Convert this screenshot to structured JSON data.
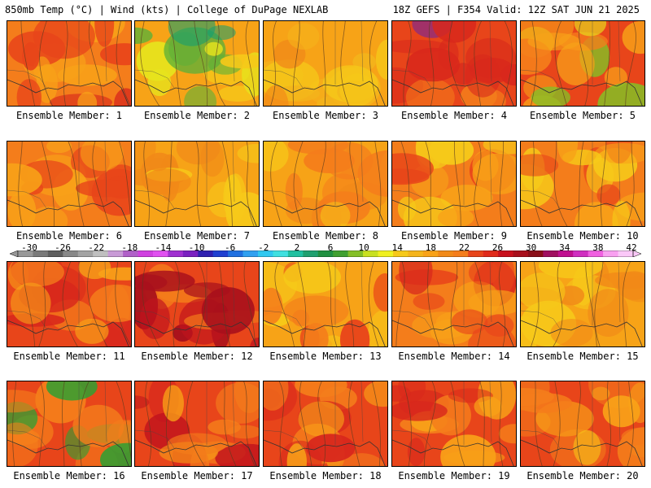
{
  "header": {
    "left": "850mb Temp (°C) | Wind (kts) | College of DuPage NEXLAB",
    "right": "18Z GEFS | F354 Valid: 12Z SAT JUN 21 2025"
  },
  "members": [
    {
      "label": "Ensemble Member: 1",
      "palette": [
        "#f47d1b",
        "#e8451a",
        "#f8a218",
        "#d8281c"
      ]
    },
    {
      "label": "Ensemble Member: 2",
      "palette": [
        "#f7a317",
        "#f6c919",
        "#e6e41d",
        "#5cb038",
        "#199e6e"
      ]
    },
    {
      "label": "Ensemble Member: 3",
      "palette": [
        "#f7a317",
        "#f6c919",
        "#f18918",
        "#f4b41b"
      ]
    },
    {
      "label": "Ensemble Member: 4",
      "palette": [
        "#e8451a",
        "#d8281c",
        "#a8101c",
        "#8b2b80",
        "#f47d1b"
      ]
    },
    {
      "label": "Ensemble Member: 5",
      "palette": [
        "#e8451a",
        "#f47d1b",
        "#f8a218",
        "#e6e41d",
        "#84bf26"
      ]
    },
    {
      "label": "Ensemble Member: 6",
      "palette": [
        "#f47d1b",
        "#e8451a",
        "#f8a218"
      ]
    },
    {
      "label": "Ensemble Member: 7",
      "palette": [
        "#f7a317",
        "#f6c919",
        "#f18918"
      ]
    },
    {
      "label": "Ensemble Member: 8",
      "palette": [
        "#f7a317",
        "#f47d1b",
        "#f6c919",
        "#f18918"
      ]
    },
    {
      "label": "Ensemble Member: 9",
      "palette": [
        "#f47d1b",
        "#e8451a",
        "#f8a218",
        "#f6c919"
      ]
    },
    {
      "label": "Ensemble Member: 10",
      "palette": [
        "#f47d1b",
        "#e8451a",
        "#f8a218",
        "#f6c919"
      ]
    },
    {
      "label": "Ensemble Member: 11",
      "palette": [
        "#e8451a",
        "#d8281c",
        "#f47d1b",
        "#f8a218"
      ]
    },
    {
      "label": "Ensemble Member: 12",
      "palette": [
        "#e8451a",
        "#c0131d",
        "#a8101c",
        "#f47d1b"
      ]
    },
    {
      "label": "Ensemble Member: 13",
      "palette": [
        "#f7a317",
        "#f47d1b",
        "#e8451a",
        "#f6c919"
      ]
    },
    {
      "label": "Ensemble Member: 14",
      "palette": [
        "#f47d1b",
        "#e8451a",
        "#d8281c",
        "#f8a218"
      ]
    },
    {
      "label": "Ensemble Member: 15",
      "palette": [
        "#f7a317",
        "#f6c919",
        "#f18918"
      ]
    },
    {
      "label": "Ensemble Member: 16",
      "palette": [
        "#e8451a",
        "#d8281c",
        "#f47d1b",
        "#f8a218",
        "#2fa033"
      ]
    },
    {
      "label": "Ensemble Member: 17",
      "palette": [
        "#e8451a",
        "#d8281c",
        "#c0131d",
        "#f47d1b",
        "#f8a218"
      ]
    },
    {
      "label": "Ensemble Member: 18",
      "palette": [
        "#e8451a",
        "#d8281c",
        "#f47d1b",
        "#f8a218"
      ]
    },
    {
      "label": "Ensemble Member: 19",
      "palette": [
        "#e8451a",
        "#d8281c",
        "#f47d1b",
        "#f8a218"
      ]
    },
    {
      "label": "Ensemble Member: 20",
      "palette": [
        "#e8451a",
        "#f47d1b",
        "#f8a218",
        "#f6c919"
      ]
    }
  ],
  "colorbar": {
    "tick_labels": [
      "-30",
      "-26",
      "-22",
      "-18",
      "-14",
      "-10",
      "-6",
      "-2",
      "2",
      "6",
      "10",
      "14",
      "18",
      "22",
      "26",
      "30",
      "34",
      "38",
      "42"
    ],
    "colors": [
      "#989898",
      "#7a7a7a",
      "#5f5f5f",
      "#888888",
      "#a3a3a3",
      "#bfbfbf",
      "#c89ad6",
      "#b060c8",
      "#d040e0",
      "#e050f0",
      "#a030d0",
      "#7a20c0",
      "#3020b0",
      "#2040d0",
      "#2070e0",
      "#30a0f0",
      "#30c8f0",
      "#40e0e0",
      "#20c0a0",
      "#20a070",
      "#209040",
      "#40a030",
      "#84bf26",
      "#c8e020",
      "#f0f020",
      "#f6c919",
      "#f4b41b",
      "#f8a218",
      "#f18918",
      "#f47d1b",
      "#e8451a",
      "#e02a1a",
      "#c8101c",
      "#a8101c",
      "#8a0e18",
      "#a01060",
      "#c01090",
      "#d030c0",
      "#f060e0",
      "#f8a0f0",
      "#fac8f8"
    ]
  }
}
